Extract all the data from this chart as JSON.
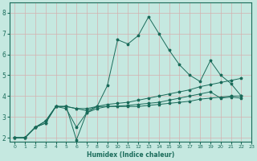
{
  "xlabel": "Humidex (Indice chaleur)",
  "bg_color": "#c5e8e0",
  "grid_color": "#d4b0b0",
  "line_color": "#1a6b5a",
  "xlim": [
    -0.5,
    23
  ],
  "ylim": [
    1.8,
    8.5
  ],
  "xticks": [
    0,
    1,
    2,
    3,
    4,
    5,
    6,
    7,
    8,
    9,
    10,
    11,
    12,
    13,
    14,
    15,
    16,
    17,
    18,
    19,
    20,
    21,
    22,
    23
  ],
  "yticks": [
    2,
    3,
    4,
    5,
    6,
    7,
    8
  ],
  "s1": [
    2.0,
    2.0,
    2.5,
    2.7,
    3.5,
    3.5,
    1.9,
    3.2,
    3.5,
    4.5,
    6.7,
    6.5,
    6.9,
    7.8,
    7.0,
    6.2,
    5.5,
    5.0,
    4.7,
    5.7,
    5.0,
    4.6,
    4.0
  ],
  "s2": [
    2.0,
    2.0,
    2.5,
    2.8,
    3.5,
    3.5,
    3.4,
    3.3,
    3.5,
    3.6,
    3.65,
    3.7,
    3.8,
    3.9,
    4.0,
    4.1,
    4.2,
    4.3,
    4.45,
    4.55,
    4.65,
    4.75,
    4.85
  ],
  "s3": [
    2.0,
    2.0,
    2.5,
    2.8,
    3.5,
    3.4,
    2.5,
    3.2,
    3.4,
    3.5,
    3.52,
    3.55,
    3.6,
    3.65,
    3.7,
    3.8,
    3.9,
    4.0,
    4.1,
    4.2,
    3.9,
    3.95,
    3.9
  ],
  "s4": [
    2.0,
    2.0,
    2.5,
    2.7,
    3.5,
    3.5,
    3.4,
    3.4,
    3.5,
    3.5,
    3.5,
    3.5,
    3.5,
    3.55,
    3.6,
    3.65,
    3.7,
    3.75,
    3.85,
    3.9,
    3.95,
    4.0,
    4.0
  ]
}
